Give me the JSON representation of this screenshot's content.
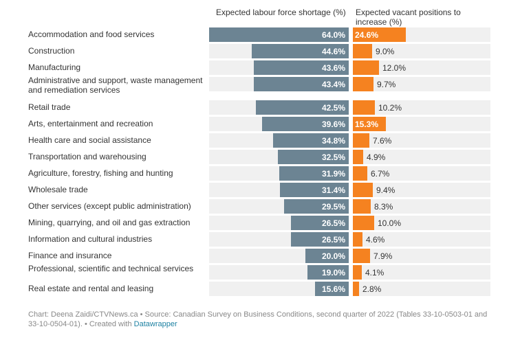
{
  "chart_data": {
    "type": "bar",
    "orientation": "horizontal",
    "series": [
      {
        "name": "Expected labour force shortage (%)",
        "color": "#6c8493",
        "values": [
          64.0,
          44.6,
          43.6,
          43.4,
          42.5,
          39.6,
          34.8,
          32.5,
          31.9,
          31.4,
          29.5,
          26.5,
          26.5,
          20.0,
          19.0,
          15.6
        ],
        "labels": [
          "64.0%",
          "44.6%",
          "43.6%",
          "43.4%",
          "42.5%",
          "39.6%",
          "34.8%",
          "32.5%",
          "31.9%",
          "31.4%",
          "29.5%",
          "26.5%",
          "26.5%",
          "20.0%",
          "19.0%",
          "15.6%"
        ],
        "xlim": [
          0,
          100
        ]
      },
      {
        "name": "Expected vacant positions to increase (%)",
        "color": "#f58220",
        "values": [
          24.6,
          9.0,
          12.0,
          9.7,
          10.2,
          15.3,
          7.6,
          4.9,
          6.7,
          9.4,
          8.3,
          10.0,
          4.6,
          7.9,
          4.1,
          2.8
        ],
        "labels": [
          "24.6%",
          "9.0%",
          "12.0%",
          "9.7%",
          "10.2%",
          "15.3%",
          "7.6%",
          "4.9%",
          "6.7%",
          "9.4%",
          "8.3%",
          "10.0%",
          "4.6%",
          "7.9%",
          "4.1%",
          "2.8%"
        ],
        "xlim": [
          0,
          100
        ]
      }
    ],
    "categories": [
      "Accommodation and food services",
      "Construction",
      "Manufacturing",
      "Administrative and support, waste management and remediation services",
      "Retail trade",
      "Arts, entertainment and recreation",
      "Health care and social assistance",
      "Transportation and warehousing",
      "Agriculture, forestry, fishing and hunting",
      "Wholesale trade",
      "Other services (except public administration)",
      "Mining, quarrying, and oil and gas extraction",
      "Information and cultural industries",
      "Finance and insurance",
      "Professional, scientific and technical services",
      "Real estate and rental and leasing"
    ],
    "column_headers": {
      "a": "Expected labour force shortage (%)",
      "b": "Expected vacant positions to increase (%)"
    }
  },
  "footer": {
    "text": "Chart: Deena Zaidi/CTVNews.ca • Source: Canadian Survey on Business Conditions, second quarter of 2022 (Tables 33-10-0503-01 and 33-10-0504-01). • Created with",
    "link": "Datawrapper"
  }
}
